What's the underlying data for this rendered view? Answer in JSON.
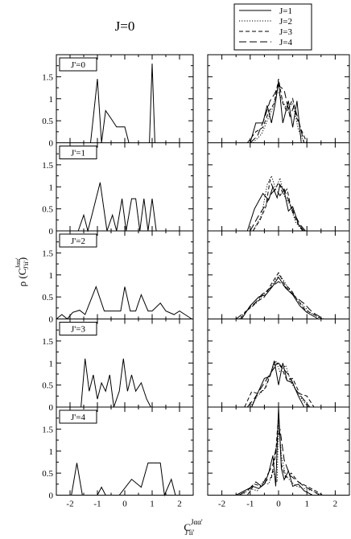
{
  "chart_data": {
    "type": "line",
    "title": "J=0",
    "ylabel": "ρ (C^{Jαα'}_{J'ii'})",
    "ylabel_main": "ρ (C",
    "ylabel_sup": "Jαα'",
    "ylabel_sub": "J'ii'",
    "ylabel_close": ")",
    "xlabel_main": "C",
    "xlabel_sup": "Jαα'",
    "xlabel_sub": "J'ii'",
    "xlim": [
      -2.5,
      2.5
    ],
    "ylim": [
      0,
      2
    ],
    "x_ticks": [
      "-2",
      "-1",
      "0",
      "1",
      "2"
    ],
    "y_ticks": [
      "0",
      "0.5",
      "1",
      "1.5"
    ],
    "grid": false,
    "legend_position": "top-right (above right column)",
    "legend": [
      {
        "label": "J=1",
        "dash": "solid"
      },
      {
        "label": "J=2",
        "dash": "dotted"
      },
      {
        "label": "J=3",
        "dash": "dashed"
      },
      {
        "label": "J=4",
        "dash": "longdash"
      }
    ],
    "rows": [
      {
        "label": "J'=0",
        "left": {
          "x": [
            -1.25,
            -1.0,
            -0.85,
            -0.7,
            -0.5,
            -0.3,
            0.0,
            0.15,
            0.4,
            0.8,
            0.9,
            1.0,
            1.1,
            1.3
          ],
          "y": [
            0,
            1.45,
            0,
            0.73,
            0.55,
            0.36,
            0.36,
            0,
            0,
            0,
            0,
            1.8,
            0,
            0
          ]
        },
        "right": [
          {
            "x": [
              -1.0,
              -0.8,
              -0.55,
              -0.4,
              -0.25,
              -0.1,
              0.0,
              0.15,
              0.35,
              0.5,
              0.65,
              0.8
            ],
            "y": [
              0,
              0.45,
              0.45,
              0.85,
              0.45,
              0.95,
              1.4,
              0.45,
              0.95,
              0.35,
              0.95,
              0
            ]
          },
          {
            "x": [
              -0.9,
              -0.6,
              -0.4,
              -0.2,
              -0.05,
              0.1,
              0.3,
              0.5,
              0.7,
              0.9
            ],
            "y": [
              0,
              0.2,
              0.5,
              0.8,
              1.2,
              1.0,
              0.75,
              0.9,
              0.3,
              0
            ]
          },
          {
            "x": [
              -1.1,
              -0.8,
              -0.55,
              -0.35,
              -0.15,
              0.0,
              0.15,
              0.3,
              0.5,
              0.65,
              0.8,
              1.0
            ],
            "y": [
              0,
              0.25,
              0.35,
              0.7,
              0.9,
              1.45,
              0.9,
              0.7,
              1.0,
              0.55,
              0.3,
              0
            ]
          },
          {
            "x": [
              -1.0,
              -0.75,
              -0.5,
              -0.3,
              -0.15,
              0.0,
              0.2,
              0.4,
              0.55,
              0.75,
              0.9
            ],
            "y": [
              0,
              0.15,
              0.55,
              0.95,
              1.1,
              1.3,
              1.2,
              0.6,
              0.85,
              0.4,
              0
            ]
          }
        ]
      },
      {
        "label": "J'=1",
        "left": {
          "x": [
            -1.7,
            -1.5,
            -1.35,
            -1.2,
            -1.05,
            -0.9,
            -0.65,
            -0.45,
            -0.3,
            -0.1,
            0.05,
            0.25,
            0.4,
            0.55,
            0.7,
            0.85,
            1.0,
            1.15
          ],
          "y": [
            0,
            0.36,
            0,
            0.36,
            0.73,
            1.1,
            0,
            0.36,
            0,
            0.73,
            0,
            0.73,
            0.73,
            0,
            0.73,
            0,
            0.73,
            0
          ]
        },
        "right": [
          {
            "x": [
              -1.1,
              -0.85,
              -0.55,
              -0.35,
              -0.2,
              -0.05,
              0.05,
              0.2,
              0.35,
              0.5,
              0.7,
              0.9
            ],
            "y": [
              0,
              0.5,
              0.85,
              0.7,
              1.0,
              0.75,
              1.05,
              0.9,
              0.45,
              0.55,
              0.15,
              0
            ]
          },
          {
            "x": [
              -0.9,
              -0.6,
              -0.4,
              -0.25,
              -0.1,
              0.05,
              0.2,
              0.4,
              0.6,
              0.85
            ],
            "y": [
              0,
              0.35,
              1.05,
              1.25,
              0.95,
              1.2,
              0.8,
              0.6,
              0.2,
              0
            ]
          },
          {
            "x": [
              -0.9,
              -0.65,
              -0.45,
              -0.3,
              -0.15,
              0.0,
              0.15,
              0.3,
              0.45,
              0.65,
              0.85
            ],
            "y": [
              0,
              0.25,
              0.55,
              1.15,
              0.9,
              1.1,
              0.85,
              0.95,
              0.5,
              0.2,
              0
            ]
          },
          {
            "x": [
              -1.0,
              -0.7,
              -0.45,
              -0.25,
              -0.1,
              0.05,
              0.2,
              0.35,
              0.55,
              0.75,
              0.95
            ],
            "y": [
              0,
              0.35,
              0.6,
              0.85,
              0.95,
              0.8,
              0.95,
              0.7,
              0.4,
              0.15,
              0
            ]
          }
        ]
      },
      {
        "label": "J'=2",
        "left": {
          "x": [
            -2.5,
            -2.3,
            -2.1,
            -1.9,
            -1.65,
            -1.45,
            -1.05,
            -0.75,
            -0.3,
            -0.15,
            0.0,
            0.2,
            0.4,
            0.6,
            0.85,
            1.0,
            1.3,
            1.5,
            1.8,
            2.0,
            2.2,
            2.45
          ],
          "y": [
            0,
            0.1,
            0,
            0.15,
            0.2,
            0.1,
            0.73,
            0.18,
            0.18,
            0.18,
            0.73,
            0.18,
            0.18,
            0.55,
            0.18,
            0.18,
            0.36,
            0.18,
            0.1,
            0.18,
            0.1,
            0
          ]
        },
        "right": [
          {
            "x": [
              -1.3,
              -1.0,
              -0.7,
              -0.45,
              -0.2,
              0.0,
              0.25,
              0.5,
              0.75,
              1.0,
              1.4
            ],
            "y": [
              0,
              0.3,
              0.5,
              0.55,
              0.75,
              0.95,
              0.7,
              0.55,
              0.3,
              0.15,
              0
            ]
          },
          {
            "x": [
              -1.4,
              -1.1,
              -0.8,
              -0.55,
              -0.3,
              -0.1,
              0.05,
              0.3,
              0.55,
              0.8,
              1.1,
              1.5
            ],
            "y": [
              0,
              0.2,
              0.35,
              0.55,
              0.7,
              0.9,
              1.0,
              0.75,
              0.5,
              0.35,
              0.15,
              0
            ]
          },
          {
            "x": [
              -1.35,
              -1.05,
              -0.75,
              -0.5,
              -0.25,
              0.0,
              0.2,
              0.45,
              0.7,
              0.95,
              1.25,
              1.55
            ],
            "y": [
              0,
              0.25,
              0.4,
              0.5,
              0.8,
              1.05,
              0.8,
              0.65,
              0.4,
              0.2,
              0.1,
              0
            ]
          },
          {
            "x": [
              -1.5,
              -1.2,
              -0.9,
              -0.6,
              -0.3,
              0.0,
              0.3,
              0.6,
              0.9,
              1.2,
              1.6
            ],
            "y": [
              0,
              0.15,
              0.3,
              0.55,
              0.7,
              0.85,
              0.7,
              0.5,
              0.35,
              0.15,
              0
            ]
          }
        ]
      },
      {
        "label": "J'=3",
        "left": {
          "x": [
            -1.6,
            -1.45,
            -1.3,
            -1.15,
            -1.0,
            -0.85,
            -0.7,
            -0.55,
            -0.4,
            -0.2,
            -0.05,
            0.1,
            0.25,
            0.4,
            0.6,
            0.8,
            0.95
          ],
          "y": [
            0,
            1.1,
            0.36,
            0.73,
            0.18,
            0.55,
            0.36,
            0.73,
            0,
            0.36,
            1.1,
            0.36,
            0.73,
            0.36,
            0.55,
            0.18,
            0
          ]
        },
        "right": [
          {
            "x": [
              -0.95,
              -0.75,
              -0.5,
              -0.3,
              -0.15,
              0.0,
              0.15,
              0.3,
              0.5,
              0.7,
              0.9
            ],
            "y": [
              0,
              0.3,
              0.65,
              0.7,
              1.05,
              0.5,
              1.0,
              0.6,
              0.55,
              0.25,
              0
            ]
          },
          {
            "x": [
              -1.0,
              -0.75,
              -0.5,
              -0.3,
              -0.1,
              0.05,
              0.25,
              0.45,
              0.65,
              0.85,
              1.05
            ],
            "y": [
              0,
              0.25,
              0.4,
              0.75,
              1.05,
              0.8,
              0.95,
              0.55,
              0.35,
              0.15,
              0
            ]
          },
          {
            "x": [
              -1.2,
              -0.95,
              -0.7,
              -0.45,
              -0.25,
              -0.05,
              0.1,
              0.3,
              0.5,
              0.75,
              1.0,
              1.25
            ],
            "y": [
              0,
              0.35,
              0.3,
              0.45,
              0.8,
              1.0,
              0.9,
              0.6,
              0.65,
              0.3,
              0.25,
              0
            ]
          },
          {
            "x": [
              -1.1,
              -0.85,
              -0.6,
              -0.4,
              -0.2,
              0.0,
              0.2,
              0.4,
              0.6,
              0.85,
              1.1
            ],
            "y": [
              0,
              0.2,
              0.45,
              0.65,
              0.85,
              1.0,
              0.85,
              0.7,
              0.4,
              0.2,
              0
            ]
          }
        ]
      },
      {
        "label": "J'=4",
        "left": {
          "x": [
            -1.95,
            -1.75,
            -1.55,
            -1.0,
            -0.85,
            -0.7,
            -0.2,
            0.25,
            0.6,
            0.85,
            1.3,
            1.45,
            1.7,
            1.85
          ],
          "y": [
            0,
            0.73,
            0,
            0,
            0.18,
            0,
            0,
            0.36,
            0.18,
            0.73,
            0.73,
            0,
            0.36,
            0
          ]
        },
        "right": [
          {
            "x": [
              -1.5,
              -1.2,
              -0.9,
              -0.7,
              -0.5,
              -0.35,
              -0.2,
              -0.1,
              0.0,
              0.1,
              0.2,
              0.35,
              0.5,
              0.7,
              0.9,
              1.2
            ],
            "y": [
              0,
              0.1,
              0.2,
              0.15,
              0.25,
              0.5,
              0.9,
              0.2,
              2.0,
              0.6,
              0.35,
              0.55,
              0.2,
              0.25,
              0.1,
              0
            ]
          },
          {
            "x": [
              -1.3,
              -1.0,
              -0.75,
              -0.55,
              -0.35,
              -0.2,
              -0.05,
              0.0,
              0.1,
              0.25,
              0.45,
              0.65,
              0.9,
              1.2,
              1.5
            ],
            "y": [
              0,
              0.15,
              0.1,
              0.3,
              0.25,
              0.55,
              0.3,
              1.7,
              0.9,
              0.45,
              0.3,
              0.2,
              0.15,
              0.1,
              0
            ]
          },
          {
            "x": [
              -1.1,
              -0.85,
              -0.6,
              -0.4,
              -0.25,
              -0.1,
              0.0,
              0.1,
              0.25,
              0.45,
              0.7,
              1.0,
              1.3,
              1.55
            ],
            "y": [
              0,
              0.25,
              0.2,
              0.35,
              0.4,
              0.95,
              1.85,
              0.7,
              0.4,
              0.5,
              0.3,
              0.2,
              0.1,
              0
            ]
          },
          {
            "x": [
              -1.4,
              -1.1,
              -0.8,
              -0.6,
              -0.4,
              -0.2,
              -0.05,
              0.05,
              0.2,
              0.4,
              0.6,
              0.9,
              1.2,
              1.45
            ],
            "y": [
              0,
              0.1,
              0.3,
              0.2,
              0.45,
              0.7,
              1.2,
              1.5,
              0.8,
              0.45,
              0.35,
              0.2,
              0.1,
              0
            ]
          }
        ]
      }
    ]
  }
}
